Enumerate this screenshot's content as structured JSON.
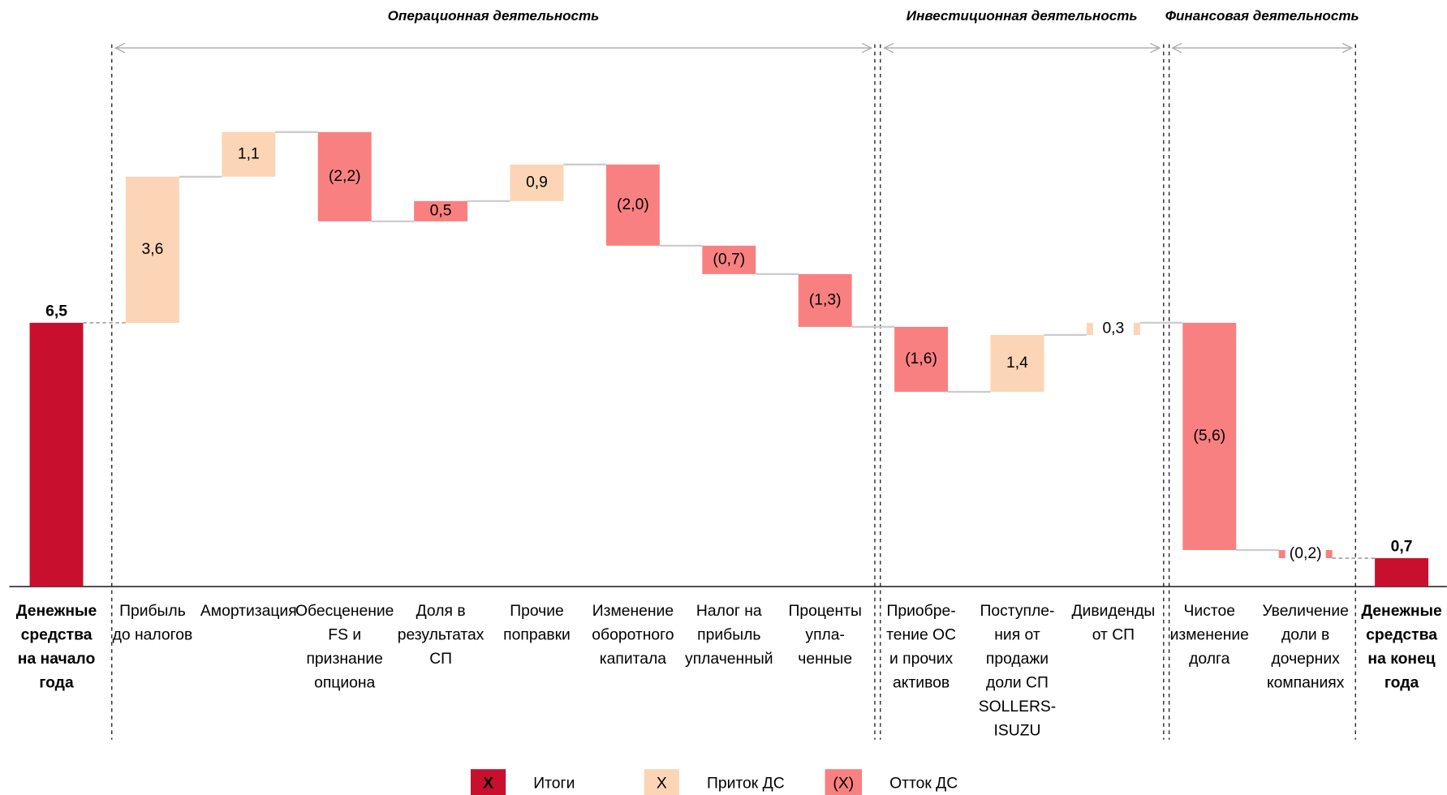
{
  "chart_data": {
    "type": "waterfall",
    "categories": [
      "Денежные\nсредства\nна начало\nгода",
      "Прибыль\nдо налогов",
      "Амортизация",
      "Обесценение\nFS и\nпризнание\nопциона",
      "Доля в\nрезультатах\nСП",
      "Прочие\nпоправки",
      "Изменение\nоборотного\nкапитала",
      "Налог на\nприбыль\nуплаченный",
      "Проценты\nупла-\nченные",
      "Приобре-\nтение ОС\nи прочих\nактивов",
      "Поступле-\nния от\nпродажи\nдоли СП\nSOLLERS-\nISUZU",
      "Дивиденды\nот СП",
      "Чистое\nизменение\nдолга",
      "Увеличение\nдоли в\nдочерних\nкомпаниях",
      "Денежные\nсредства\nна конец\nгода"
    ],
    "values": [
      6.5,
      3.6,
      1.1,
      -2.2,
      0.5,
      0.9,
      -2.0,
      -0.7,
      -1.3,
      -1.6,
      1.4,
      0.3,
      -5.6,
      -0.2,
      0.7
    ],
    "value_labels": [
      "6,5",
      "3,6",
      "1,1",
      "(2,2)",
      "0,5",
      "0,9",
      "(2,0)",
      "(0,7)",
      "(1,3)",
      "(1,6)",
      "1,4",
      "0,3",
      "(5,6)",
      "(0,2)",
      "0,7"
    ],
    "totals": [
      0,
      14
    ],
    "colors": [
      "#c8102e",
      "#fbd5b5",
      "#fbd5b5",
      "#f98080",
      "#f98080",
      "#fbd5b5",
      "#f98080",
      "#f98080",
      "#f98080",
      "#f98080",
      "#fbd5b5",
      "#fbd5b5",
      "#f98080",
      "#f98080",
      "#c8102e"
    ],
    "groups": [
      {
        "label": "Операционная деятельность",
        "start": 1,
        "end": 8
      },
      {
        "label": "Инвестиционная деятельность",
        "start": 9,
        "end": 11
      },
      {
        "label": "Финансовая деятельность",
        "start": 12,
        "end": 13
      }
    ],
    "legend": [
      {
        "symbol": "X",
        "label": "Итоги",
        "color": "#c8102e"
      },
      {
        "symbol": "X",
        "label": "Приток ДС",
        "color": "#fbd5b5"
      },
      {
        "symbol": "(X)",
        "label": "Отток ДС",
        "color": "#f98080"
      }
    ]
  }
}
